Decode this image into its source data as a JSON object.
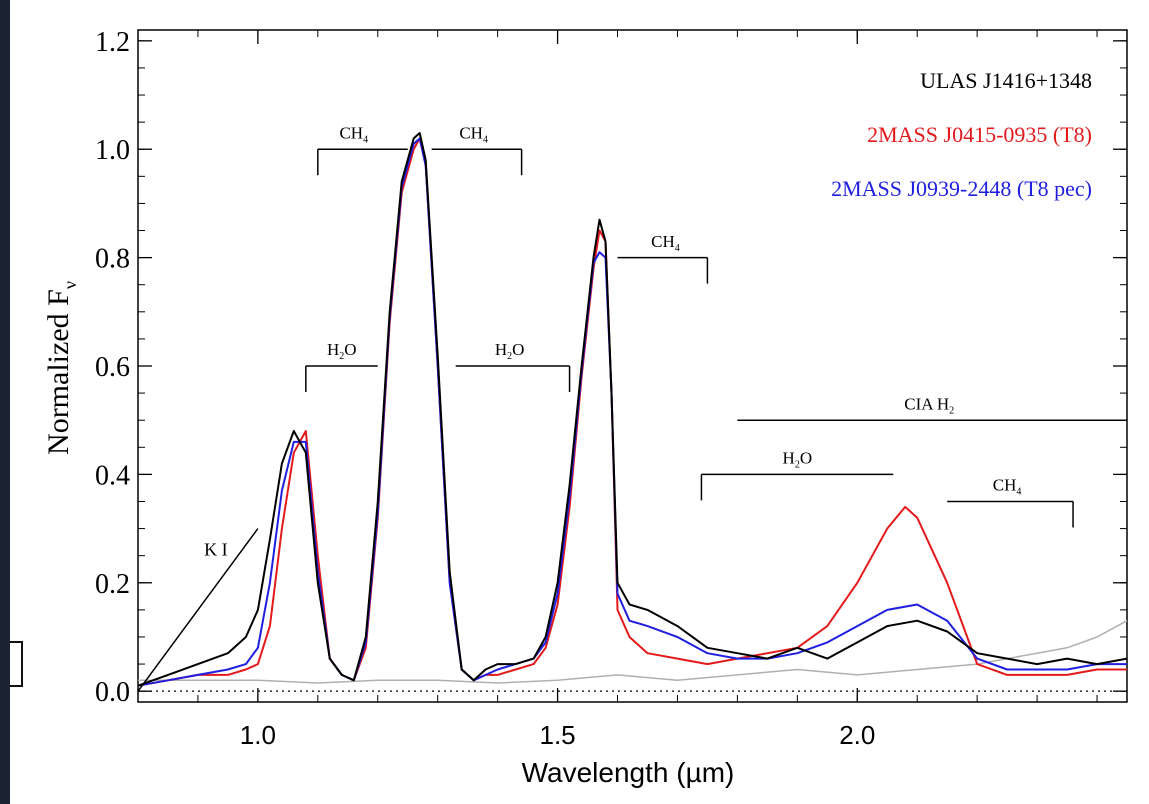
{
  "chart_data": {
    "type": "line",
    "xlabel": "Wavelength (µm)",
    "ylabel": "Normalized F",
    "ylabel_sub": "ν",
    "xlim": [
      0.8,
      2.45
    ],
    "ylim": [
      -0.02,
      1.22
    ],
    "xticks": [
      1.0,
      1.5,
      2.0
    ],
    "xtick_labels": [
      "1.0",
      "1.5",
      "2.0"
    ],
    "yticks": [
      0.0,
      0.2,
      0.4,
      0.6,
      0.8,
      1.0,
      1.2
    ],
    "ytick_labels": [
      "0.0",
      "0.2",
      "0.4",
      "0.6",
      "0.8",
      "1.0",
      "1.2"
    ],
    "legend_position": "top-right",
    "legend": [
      {
        "label": "ULAS J1416+1348",
        "color": "#000000"
      },
      {
        "label": "2MASS J0415-0935 (T8)",
        "color": "#e31a1c"
      },
      {
        "label": "2MASS J0939-2448 (T8 pec)",
        "color": "#1f1fe0"
      }
    ],
    "series": [
      {
        "name": "ULAS J1416+1348",
        "color": "#000000",
        "x": [
          0.8,
          0.85,
          0.9,
          0.95,
          0.98,
          1.0,
          1.02,
          1.04,
          1.06,
          1.08,
          1.1,
          1.12,
          1.14,
          1.16,
          1.18,
          1.2,
          1.22,
          1.24,
          1.26,
          1.27,
          1.28,
          1.3,
          1.32,
          1.34,
          1.36,
          1.38,
          1.4,
          1.43,
          1.46,
          1.48,
          1.5,
          1.52,
          1.54,
          1.56,
          1.57,
          1.58,
          1.59,
          1.6,
          1.62,
          1.65,
          1.7,
          1.75,
          1.8,
          1.85,
          1.9,
          1.95,
          2.0,
          2.05,
          2.1,
          2.15,
          2.2,
          2.25,
          2.3,
          2.35,
          2.4,
          2.45
        ],
        "y": [
          0.01,
          0.03,
          0.05,
          0.07,
          0.1,
          0.15,
          0.28,
          0.42,
          0.48,
          0.44,
          0.2,
          0.06,
          0.03,
          0.02,
          0.1,
          0.35,
          0.7,
          0.94,
          1.02,
          1.03,
          0.98,
          0.62,
          0.22,
          0.04,
          0.02,
          0.04,
          0.05,
          0.05,
          0.06,
          0.1,
          0.2,
          0.38,
          0.6,
          0.8,
          0.87,
          0.83,
          0.55,
          0.2,
          0.16,
          0.15,
          0.12,
          0.08,
          0.07,
          0.06,
          0.08,
          0.06,
          0.09,
          0.12,
          0.13,
          0.11,
          0.07,
          0.06,
          0.05,
          0.06,
          0.05,
          0.06
        ]
      },
      {
        "name": "2MASS J0415-0935 (T8)",
        "color": "#e31a1c",
        "x": [
          0.8,
          0.85,
          0.9,
          0.95,
          0.98,
          1.0,
          1.02,
          1.04,
          1.06,
          1.08,
          1.1,
          1.12,
          1.14,
          1.16,
          1.18,
          1.2,
          1.22,
          1.24,
          1.26,
          1.27,
          1.28,
          1.3,
          1.32,
          1.34,
          1.36,
          1.38,
          1.4,
          1.43,
          1.46,
          1.48,
          1.5,
          1.52,
          1.54,
          1.56,
          1.57,
          1.58,
          1.59,
          1.6,
          1.62,
          1.65,
          1.7,
          1.75,
          1.8,
          1.85,
          1.9,
          1.95,
          2.0,
          2.05,
          2.08,
          2.1,
          2.15,
          2.2,
          2.25,
          2.3,
          2.35,
          2.4,
          2.45
        ],
        "y": [
          0.01,
          0.02,
          0.03,
          0.03,
          0.04,
          0.05,
          0.12,
          0.3,
          0.44,
          0.48,
          0.25,
          0.06,
          0.03,
          0.02,
          0.08,
          0.32,
          0.68,
          0.92,
          1.0,
          1.02,
          0.97,
          0.6,
          0.2,
          0.04,
          0.02,
          0.03,
          0.03,
          0.04,
          0.05,
          0.08,
          0.16,
          0.34,
          0.58,
          0.78,
          0.85,
          0.83,
          0.55,
          0.15,
          0.1,
          0.07,
          0.06,
          0.05,
          0.06,
          0.07,
          0.08,
          0.12,
          0.2,
          0.3,
          0.34,
          0.32,
          0.2,
          0.05,
          0.03,
          0.03,
          0.03,
          0.04,
          0.04
        ]
      },
      {
        "name": "2MASS J0939-2448 (T8 pec)",
        "color": "#1f1fe0",
        "x": [
          0.8,
          0.85,
          0.9,
          0.95,
          0.98,
          1.0,
          1.02,
          1.04,
          1.06,
          1.08,
          1.1,
          1.12,
          1.14,
          1.16,
          1.18,
          1.2,
          1.22,
          1.24,
          1.26,
          1.27,
          1.28,
          1.3,
          1.32,
          1.34,
          1.36,
          1.38,
          1.4,
          1.43,
          1.46,
          1.48,
          1.5,
          1.52,
          1.54,
          1.56,
          1.57,
          1.58,
          1.59,
          1.6,
          1.62,
          1.65,
          1.7,
          1.75,
          1.8,
          1.85,
          1.9,
          1.95,
          2.0,
          2.05,
          2.1,
          2.15,
          2.2,
          2.25,
          2.3,
          2.35,
          2.4,
          2.45
        ],
        "y": [
          0.01,
          0.02,
          0.03,
          0.04,
          0.05,
          0.08,
          0.2,
          0.37,
          0.46,
          0.46,
          0.22,
          0.06,
          0.03,
          0.02,
          0.09,
          0.33,
          0.69,
          0.93,
          1.01,
          1.02,
          0.97,
          0.6,
          0.2,
          0.04,
          0.02,
          0.03,
          0.04,
          0.05,
          0.06,
          0.09,
          0.18,
          0.36,
          0.59,
          0.79,
          0.81,
          0.8,
          0.55,
          0.18,
          0.13,
          0.12,
          0.1,
          0.07,
          0.06,
          0.06,
          0.07,
          0.09,
          0.12,
          0.15,
          0.16,
          0.13,
          0.06,
          0.04,
          0.04,
          0.04,
          0.05,
          0.05
        ]
      },
      {
        "name": "",
        "color": "#b0b0b0",
        "x": [
          0.8,
          0.9,
          1.0,
          1.1,
          1.2,
          1.3,
          1.4,
          1.5,
          1.6,
          1.7,
          1.8,
          1.9,
          2.0,
          2.1,
          2.2,
          2.3,
          2.35,
          2.4,
          2.45
        ],
        "y": [
          0.02,
          0.02,
          0.02,
          0.015,
          0.02,
          0.02,
          0.015,
          0.02,
          0.03,
          0.02,
          0.03,
          0.04,
          0.03,
          0.04,
          0.05,
          0.07,
          0.08,
          0.1,
          0.13
        ]
      }
    ],
    "reference_line": {
      "y": 0.0,
      "style": "dotted"
    },
    "annotations": {
      "ki": {
        "text": "K I",
        "x": 0.93,
        "y": 0.25,
        "line_from": [
          0.8,
          0.0
        ],
        "line_to": [
          1.0,
          0.3
        ]
      },
      "bands": [
        {
          "label": "CH",
          "sub": "4",
          "x0": 1.1,
          "x1": 1.25,
          "y": 1.0,
          "tick_left": true,
          "tick_right": false,
          "label_x": 1.16,
          "label_y": 1.02
        },
        {
          "label": "CH",
          "sub": "4",
          "x0": 1.29,
          "x1": 1.44,
          "y": 1.0,
          "tick_left": false,
          "tick_right": true,
          "label_x": 1.36,
          "label_y": 1.02
        },
        {
          "label": "CH",
          "sub": "4",
          "x0": 1.6,
          "x1": 1.75,
          "y": 0.8,
          "tick_left": false,
          "tick_right": true,
          "label_x": 1.68,
          "label_y": 0.82
        },
        {
          "label": "H",
          "sub": "2",
          "post": "O",
          "x0": 1.08,
          "x1": 1.2,
          "y": 0.6,
          "tick_left": true,
          "tick_right": false,
          "label_x": 1.14,
          "label_y": 0.62
        },
        {
          "label": "H",
          "sub": "2",
          "post": "O",
          "x0": 1.33,
          "x1": 1.52,
          "y": 0.6,
          "tick_left": false,
          "tick_right": true,
          "label_x": 1.42,
          "label_y": 0.62
        },
        {
          "label": "CIA H",
          "sub": "2",
          "x0": 1.8,
          "x1": 2.45,
          "y": 0.5,
          "tick_left": false,
          "tick_right": false,
          "label_x": 2.12,
          "label_y": 0.52
        },
        {
          "label": "H",
          "sub": "2",
          "post": "O",
          "x0": 1.74,
          "x1": 2.06,
          "y": 0.4,
          "tick_left": true,
          "tick_right": false,
          "label_x": 1.9,
          "label_y": 0.42
        },
        {
          "label": "CH",
          "sub": "4",
          "x0": 2.15,
          "x1": 2.36,
          "y": 0.35,
          "tick_left": false,
          "tick_right": true,
          "label_x": 2.25,
          "label_y": 0.37
        }
      ]
    }
  }
}
